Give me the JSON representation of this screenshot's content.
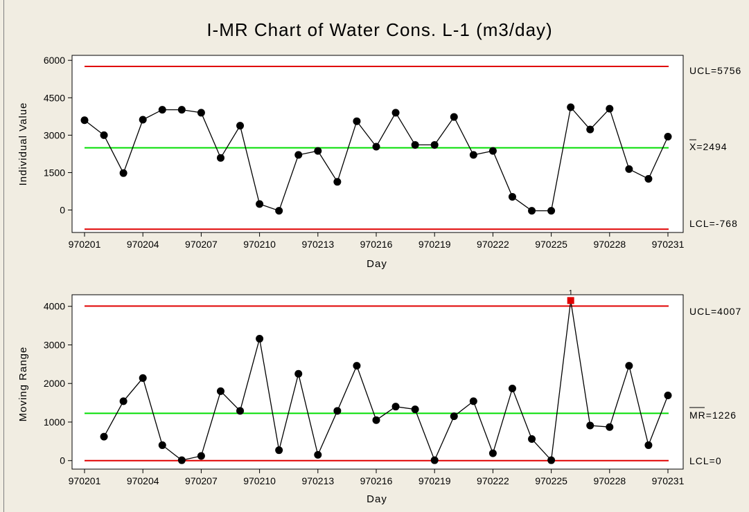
{
  "colors": {
    "background": "#f1ede2",
    "plot_area": "#ffffff",
    "limit_line": "#e00000",
    "center_line": "#00dd00",
    "series": "#000000",
    "out_of_control": "#e00000"
  },
  "chart_data": [
    {
      "type": "line",
      "title": "I-MR Chart of Water Cons. L-1 (m3/day)",
      "xlabel": "Day",
      "ylabel": "Individual Value",
      "x_tick_labels": [
        "970201",
        "970204",
        "970207",
        "970210",
        "970213",
        "970216",
        "970219",
        "970222",
        "970225",
        "970228",
        "970231"
      ],
      "x_tick_positions": [
        1,
        4,
        7,
        10,
        13,
        16,
        19,
        22,
        25,
        28,
        31
      ],
      "xlim": [
        1,
        31
      ],
      "y_ticks": [
        0,
        1500,
        3000,
        4500,
        6000
      ],
      "ylim": [
        -900,
        6200
      ],
      "series": [
        {
          "x": [
            1,
            2,
            3,
            4,
            5,
            6,
            7,
            8,
            9,
            10,
            11,
            12,
            13,
            14,
            15,
            16,
            17,
            18,
            19,
            20,
            21,
            22,
            23,
            24,
            25,
            26,
            27,
            28,
            29,
            30,
            31
          ],
          "values": [
            3600,
            3000,
            1480,
            3620,
            4020,
            4020,
            3900,
            2090,
            3380,
            240,
            -30,
            2210,
            2370,
            1130,
            3560,
            2540,
            3900,
            2610,
            2610,
            3730,
            2210,
            2370,
            530,
            -30,
            -30,
            4120,
            3230,
            4060,
            1640,
            1250,
            2940
          ]
        }
      ],
      "limits": {
        "ucl": 5756,
        "ucl_label": "UCL=5756",
        "center": 2494,
        "center_label": "X=2494",
        "lcl": -768,
        "lcl_label": "LCL=-768"
      }
    },
    {
      "type": "line",
      "xlabel": "Day",
      "ylabel": "Moving Range",
      "x_tick_labels": [
        "970201",
        "970204",
        "970207",
        "970210",
        "970213",
        "970216",
        "970219",
        "970222",
        "970225",
        "970228",
        "970231"
      ],
      "x_tick_positions": [
        1,
        4,
        7,
        10,
        13,
        16,
        19,
        22,
        25,
        28,
        31
      ],
      "xlim": [
        1,
        31
      ],
      "y_ticks": [
        0,
        1000,
        2000,
        3000,
        4000
      ],
      "ylim": [
        -220,
        4300
      ],
      "series": [
        {
          "x": [
            2,
            3,
            4,
            5,
            6,
            7,
            8,
            9,
            10,
            11,
            12,
            13,
            14,
            15,
            16,
            17,
            18,
            19,
            20,
            21,
            22,
            23,
            24,
            25,
            26,
            27,
            28,
            29,
            30,
            31
          ],
          "values": [
            620,
            1540,
            2140,
            400,
            10,
            120,
            1800,
            1290,
            3160,
            270,
            2250,
            150,
            1290,
            2460,
            1050,
            1400,
            1330,
            10,
            1150,
            1540,
            190,
            1870,
            560,
            10,
            4150,
            910,
            870,
            2460,
            400,
            1690
          ]
        }
      ],
      "out_of_control": [
        {
          "x": 26,
          "value": 4150,
          "flag": "1"
        }
      ],
      "limits": {
        "ucl": 4007,
        "ucl_label": "UCL=4007",
        "center": 1226,
        "center_label": "MR=1226",
        "lcl": 0,
        "lcl_label": "LCL=0"
      }
    }
  ]
}
